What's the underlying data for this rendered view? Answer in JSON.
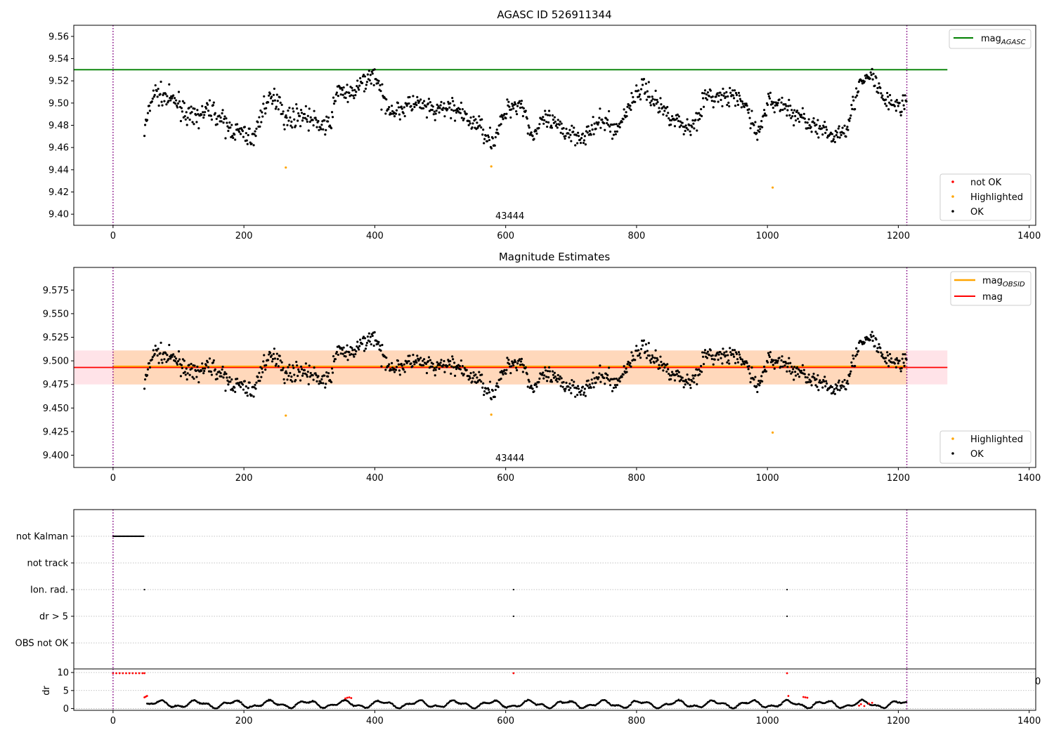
{
  "chart_data": [
    {
      "type": "scatter",
      "title": "AGASC ID 526911344",
      "xlim": [
        -60,
        1410
      ],
      "ylim": [
        9.39,
        9.57
      ],
      "x_ticks": [
        0,
        200,
        400,
        600,
        800,
        1000,
        1200,
        1400
      ],
      "y_ticks": [
        9.4,
        9.42,
        9.44,
        9.46,
        9.48,
        9.5,
        9.52,
        9.54,
        9.56
      ],
      "obsid_label": "43444",
      "obsid_label_x": 600,
      "vlines": [
        0,
        1213
      ],
      "hline": {
        "y": 9.53,
        "x0": -60,
        "x1": 1275,
        "color": "#008000",
        "label": "mag",
        "label_sub": "AGASC"
      },
      "series": [
        {
          "name": "not OK",
          "color": "#ff0000",
          "points": []
        },
        {
          "name": "Highlighted",
          "color": "#ffa500",
          "points": [
            [
              264,
              9.442
            ],
            [
              578,
              9.443
            ],
            [
              1008,
              9.424
            ]
          ]
        },
        {
          "name": "OK",
          "color": "#000000",
          "points": []
        }
      ],
      "legend_main": "top-right",
      "legend_points": "bottom-right"
    },
    {
      "type": "scatter",
      "title": "Magnitude Estimates",
      "xlim": [
        -60,
        1410
      ],
      "ylim": [
        9.387,
        9.599
      ],
      "x_ticks": [
        0,
        200,
        400,
        600,
        800,
        1000,
        1200,
        1400
      ],
      "y_ticks": [
        9.4,
        9.425,
        9.45,
        9.475,
        9.5,
        9.525,
        9.55,
        9.575
      ],
      "obsid_label": "43444",
      "obsid_label_x": 600,
      "vlines": [
        0,
        1213
      ],
      "mag_line": {
        "y": 9.493,
        "x0": -60,
        "x1": 1275,
        "color": "#ff0000",
        "label": "mag",
        "band": [
          9.475,
          9.511
        ],
        "band_color": "#ffc0cb"
      },
      "mag_obsid_line": {
        "y": 9.494,
        "x0": 0,
        "x1": 1213,
        "color": "#ffa500",
        "label": "mag",
        "label_sub": "OBSID",
        "band": [
          9.475,
          9.511
        ],
        "band_color": "#ffd3a8"
      },
      "series": [
        {
          "name": "Highlighted",
          "color": "#ffa500",
          "points": [
            [
              264,
              9.442
            ],
            [
              578,
              9.443
            ],
            [
              1008,
              9.424
            ]
          ]
        },
        {
          "name": "OK",
          "color": "#000000",
          "points": []
        }
      ],
      "legend_main": "top-right",
      "legend_points": "bottom-right"
    },
    {
      "type": "scatter",
      "title": "",
      "xlim": [
        -60,
        1410
      ],
      "x_ticks": [
        0,
        200,
        400,
        600,
        800,
        1000,
        1200,
        1400
      ],
      "categories": [
        "not Kalman",
        "not track",
        "Ion. rad.",
        "dr > 5",
        "OBS not OK"
      ],
      "vlines": [
        0,
        1213
      ],
      "flags": {
        "not Kalman": {
          "ranges": [
            [
              0,
              48
            ]
          ]
        },
        "not track": {
          "ranges": []
        },
        "Ion. rad.": {
          "points": [
            48,
            612,
            1030
          ]
        },
        "dr > 5": {
          "points": [
            612,
            1030
          ]
        },
        "OBS not OK": {
          "points": []
        }
      }
    },
    {
      "type": "scatter",
      "ylabel": "dr",
      "xlim": [
        -60,
        1410
      ],
      "ylim": [
        -0.5,
        11
      ],
      "x_ticks": [
        0,
        200,
        400,
        600,
        800,
        1000,
        1200,
        1400
      ],
      "y_ticks": [
        0,
        5,
        10
      ],
      "stray_tick_label": "0",
      "vlines": [
        0,
        1213
      ],
      "red_points": [
        [
          0,
          9.8
        ],
        [
          5,
          9.8
        ],
        [
          10,
          9.8
        ],
        [
          15,
          9.8
        ],
        [
          20,
          9.8
        ],
        [
          25,
          9.8
        ],
        [
          30,
          9.8
        ],
        [
          35,
          9.8
        ],
        [
          40,
          9.8
        ],
        [
          45,
          9.8
        ],
        [
          48,
          9.8
        ],
        [
          48,
          3.1
        ],
        [
          50,
          3.3
        ],
        [
          52,
          3.5
        ],
        [
          355,
          2.8
        ],
        [
          358,
          3.0
        ],
        [
          361,
          3.1
        ],
        [
          364,
          2.9
        ],
        [
          612,
          9.8
        ],
        [
          1030,
          9.8
        ],
        [
          1032,
          3.5
        ],
        [
          1055,
          3.2
        ],
        [
          1058,
          3.1
        ],
        [
          1061,
          3.0
        ],
        [
          1140,
          0.8
        ],
        [
          1143,
          1.2
        ],
        [
          1148,
          0.7
        ],
        [
          1155,
          1.4
        ],
        [
          1160,
          1.6
        ]
      ]
    }
  ]
}
